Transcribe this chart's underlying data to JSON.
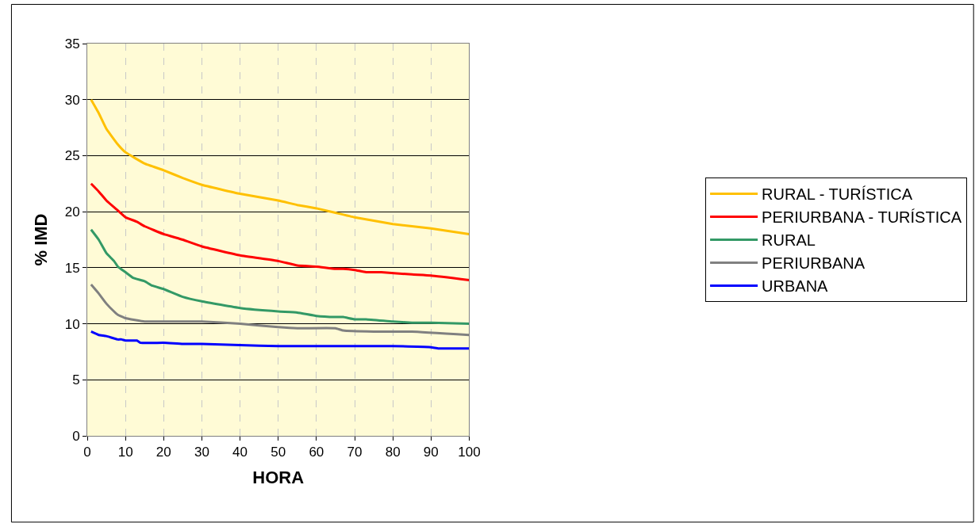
{
  "chart_data": {
    "type": "line",
    "xlabel": "HORA",
    "ylabel": "% IMD",
    "xlim": [
      0,
      100
    ],
    "xticks": [
      0,
      10,
      20,
      30,
      40,
      50,
      60,
      70,
      80,
      90,
      100
    ],
    "ylim": [
      0,
      35
    ],
    "yticks": [
      0,
      5,
      10,
      15,
      20,
      25,
      30,
      35
    ],
    "grid": true,
    "legend": "right",
    "marker": "none",
    "line_style": "solid",
    "series": [
      {
        "name": "RURAL - TURÍSTICA",
        "color": "#ffc000",
        "x": [
          1,
          3,
          5,
          8,
          10,
          15,
          20,
          25,
          30,
          40,
          50,
          55,
          60,
          65,
          70,
          80,
          90,
          100
        ],
        "values": [
          30,
          28.8,
          27.4,
          26,
          25.3,
          24.3,
          23.7,
          23,
          22.4,
          21.6,
          21,
          20.6,
          20.3,
          19.9,
          19.5,
          18.9,
          18.5,
          18.0
        ]
      },
      {
        "name": "PERIURBANA - TURÍSTICA",
        "color": "#ff0000",
        "x": [
          1,
          3,
          5,
          8,
          10,
          13,
          15,
          20,
          25,
          30,
          40,
          50,
          55,
          60,
          65,
          67,
          70,
          73,
          77,
          85,
          90,
          100
        ],
        "values": [
          22.5,
          21.8,
          21,
          20.1,
          19.5,
          19.1,
          18.7,
          18,
          17.5,
          16.9,
          16.1,
          15.6,
          15.2,
          15.1,
          14.9,
          14.9,
          14.8,
          14.6,
          14.6,
          14.4,
          14.3,
          13.9
        ]
      },
      {
        "name": "RURAL",
        "color": "#339966",
        "x": [
          1,
          3,
          5,
          7,
          8,
          10,
          12,
          15,
          17,
          20,
          25,
          30,
          40,
          50,
          55,
          60,
          65,
          67,
          70,
          73,
          80,
          85,
          90,
          100
        ],
        "values": [
          18.4,
          17.5,
          16.3,
          15.6,
          15.1,
          14.6,
          14.1,
          13.8,
          13.4,
          13.1,
          12.4,
          12,
          11.4,
          11.1,
          11,
          10.7,
          10.6,
          10.6,
          10.4,
          10.4,
          10.2,
          10.1,
          10.1,
          10.0
        ]
      },
      {
        "name": "PERIURBANA",
        "color": "#808080",
        "x": [
          1,
          3,
          5,
          7,
          8,
          10,
          15,
          20,
          30,
          40,
          50,
          55,
          65,
          67,
          75,
          85,
          100
        ],
        "values": [
          13.5,
          12.7,
          11.8,
          11.1,
          10.8,
          10.5,
          10.2,
          10.2,
          10.2,
          10.0,
          9.7,
          9.6,
          9.6,
          9.4,
          9.3,
          9.3,
          9.0
        ]
      },
      {
        "name": "URBANA",
        "color": "#0000ff",
        "x": [
          1,
          3,
          5,
          8,
          9,
          10,
          13,
          14,
          20,
          25,
          30,
          40,
          50,
          80,
          90,
          92,
          100
        ],
        "values": [
          9.3,
          9.0,
          8.9,
          8.6,
          8.6,
          8.5,
          8.5,
          8.3,
          8.3,
          8.2,
          8.2,
          8.1,
          8.0,
          8.0,
          7.9,
          7.8,
          7.8
        ]
      }
    ]
  }
}
